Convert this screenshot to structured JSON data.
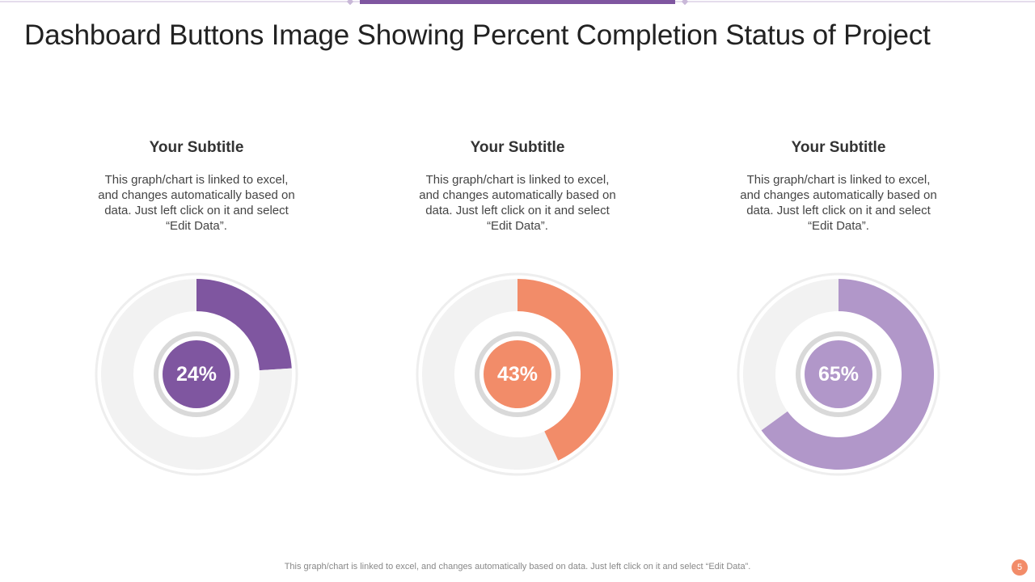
{
  "title": "Dashboard Buttons Image Showing Percent Completion Status of Project",
  "footer": "This graph/chart is linked to excel,  and changes automatically based on data. Just left click on it and select “Edit Data”.",
  "page_number": 5,
  "chart_data": [
    {
      "type": "donut",
      "subtitle": "Your Subtitle",
      "description": "This graph/chart is linked to excel, and changes automatically based on data. Just left click on it and select “Edit Data”.",
      "values": [
        24,
        76
      ],
      "value_labels": [
        "24%",
        null
      ],
      "colors": [
        "#7f56a0",
        "#f2f2f2"
      ]
    },
    {
      "type": "donut",
      "subtitle": "Your Subtitle",
      "description": "This graph/chart is linked to excel, and changes automatically based on data. Just left click on it and select “Edit Data”.",
      "values": [
        43,
        57
      ],
      "value_labels": [
        "43%",
        null
      ],
      "colors": [
        "#f28c69",
        "#f2f2f2"
      ]
    },
    {
      "type": "donut",
      "subtitle": "Your Subtitle",
      "description": "This graph/chart is linked to excel, and changes automatically based on data. Just left click on it and select “Edit Data”.",
      "values": [
        65,
        35
      ],
      "value_labels": [
        "65%",
        null
      ],
      "colors": [
        "#b197c9",
        "#f2f2f2"
      ]
    }
  ]
}
